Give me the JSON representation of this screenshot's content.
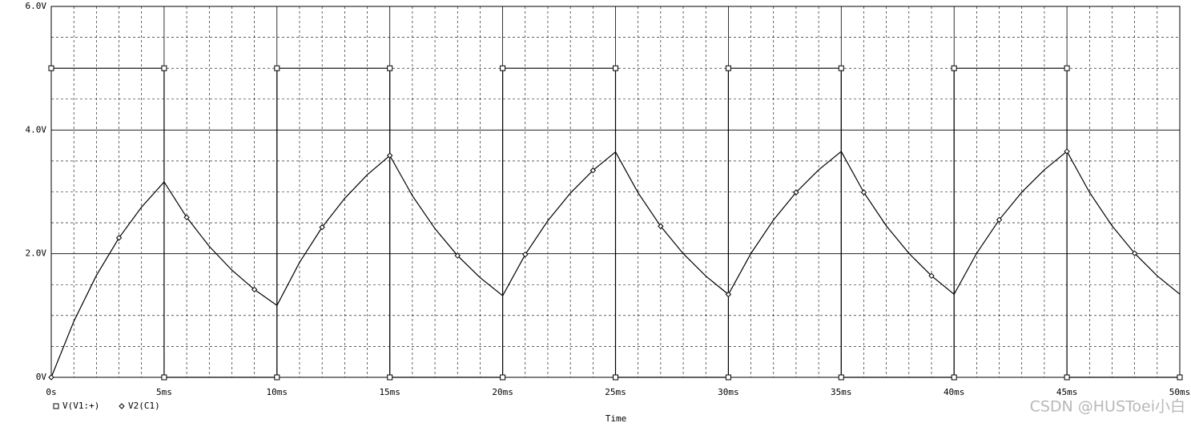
{
  "chart_data": {
    "type": "line",
    "x_label": "Time",
    "xlim": [
      0,
      50
    ],
    "ylim": [
      0,
      6
    ],
    "xticks": [
      {
        "value": 0,
        "label": "0s"
      },
      {
        "value": 5,
        "label": "5ms"
      },
      {
        "value": 10,
        "label": "10ms"
      },
      {
        "value": 15,
        "label": "15ms"
      },
      {
        "value": 20,
        "label": "20ms"
      },
      {
        "value": 25,
        "label": "25ms"
      },
      {
        "value": 30,
        "label": "30ms"
      },
      {
        "value": 35,
        "label": "35ms"
      },
      {
        "value": 40,
        "label": "40ms"
      },
      {
        "value": 45,
        "label": "45ms"
      },
      {
        "value": 50,
        "label": "50ms"
      }
    ],
    "yticks": [
      {
        "value": 0,
        "label": "0V"
      },
      {
        "value": 2,
        "label": "2.0V"
      },
      {
        "value": 4,
        "label": "4.0V"
      },
      {
        "value": 6,
        "label": "6.0V"
      }
    ],
    "grid": true,
    "series": [
      {
        "name": "V(V1:+)",
        "color": "#000000",
        "marker": "square",
        "x": [
          0,
          5,
          5,
          10,
          10,
          15,
          15,
          20,
          20,
          25,
          25,
          30,
          30,
          35,
          35,
          40,
          40,
          45,
          45,
          50
        ],
        "values": [
          5,
          5,
          0,
          0,
          5,
          5,
          0,
          0,
          5,
          5,
          0,
          0,
          5,
          5,
          0,
          0,
          5,
          5,
          0,
          0
        ]
      },
      {
        "name": "V2(C1)",
        "color": "#000000",
        "marker": "diamond",
        "x": [
          0,
          1,
          2,
          3,
          4,
          5,
          6,
          7,
          8,
          9,
          10,
          11,
          12,
          13,
          14,
          15,
          16,
          17,
          18,
          19,
          20,
          21,
          22,
          23,
          24,
          25,
          26,
          27,
          28,
          29,
          30,
          31,
          32,
          33,
          34,
          35,
          36,
          37,
          38,
          39,
          40,
          41,
          42,
          43,
          44,
          45,
          46,
          47,
          48,
          49,
          50
        ],
        "values": [
          0,
          0.906,
          1.648,
          2.256,
          2.753,
          3.161,
          2.588,
          2.119,
          1.735,
          1.42,
          1.163,
          1.859,
          2.428,
          2.894,
          3.276,
          3.588,
          2.938,
          2.405,
          1.969,
          1.612,
          1.32,
          1.987,
          2.533,
          2.98,
          3.347,
          3.646,
          2.985,
          2.444,
          2.001,
          1.638,
          1.341,
          2.004,
          2.547,
          2.992,
          3.356,
          3.654,
          2.992,
          2.449,
          2.005,
          1.642,
          1.344,
          2.007,
          2.549,
          2.994,
          3.357,
          3.655,
          2.992,
          2.45,
          2.006,
          1.642,
          1.345
        ]
      }
    ],
    "watermark": "CSDN @HUSToei小白"
  }
}
